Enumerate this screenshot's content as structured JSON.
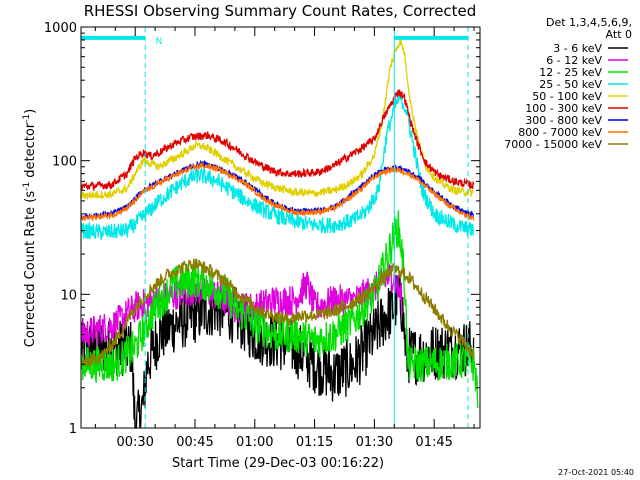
{
  "chart_data": {
    "type": "line",
    "title": "RHESSI Observing Summary Count Rates, Corrected",
    "xlabel": "Start Time (29-Dec-03 00:16:22)",
    "ylabel": "Corrected Count Rate (s",
    "ylabel_sup1": "-1",
    "ylabel_mid": " detector",
    "ylabel_sup2": "-1",
    "ylabel_end": ")",
    "yscale": "log",
    "ylim": [
      1,
      1000
    ],
    "xlim_minutes": [
      16.4,
      116.5
    ],
    "x_ticks": [
      {
        "label": "00:30",
        "minutes": 30
      },
      {
        "label": "00:45",
        "minutes": 45
      },
      {
        "label": "01:00",
        "minutes": 60
      },
      {
        "label": "01:15",
        "minutes": 75
      },
      {
        "label": "01:30",
        "minutes": 90
      },
      {
        "label": "01:45",
        "minutes": 105
      }
    ],
    "y_ticks": [
      {
        "label": "1",
        "value": 1
      },
      {
        "label": "10",
        "value": 10
      },
      {
        "label": "100",
        "value": 100
      },
      {
        "label": "1000",
        "value": 1000
      }
    ],
    "legend_header": [
      "Det 1,3,4,5,6,9,",
      "Att 0"
    ],
    "annotations": {
      "night_label": "N",
      "timestamp": "27-Oct-2021 05:40"
    },
    "markers": {
      "night_bar_minutes": [
        16.4,
        32.5
      ],
      "saa_bar_minutes": [
        95,
        113.5
      ],
      "dashed_lines_minutes": [
        32.5,
        113.5
      ],
      "solid_line_minutes": 95,
      "marker_bar_value": 830
    },
    "series": [
      {
        "name": "3 - 6 keV",
        "color": "#000000",
        "points": [
          [
            16.5,
            4
          ],
          [
            29,
            4
          ],
          [
            30,
            1
          ],
          [
            32,
            1.5
          ],
          [
            33,
            3
          ],
          [
            36,
            5
          ],
          [
            40,
            6
          ],
          [
            45,
            7
          ],
          [
            50,
            8
          ],
          [
            55,
            7
          ],
          [
            60,
            5
          ],
          [
            65,
            4.5
          ],
          [
            70,
            4
          ],
          [
            75,
            3
          ],
          [
            80,
            2.5
          ],
          [
            85,
            3
          ],
          [
            90,
            5
          ],
          [
            93,
            7
          ],
          [
            95,
            8
          ],
          [
            96,
            10
          ],
          [
            97,
            8
          ],
          [
            98,
            3.5
          ],
          [
            100,
            3.5
          ],
          [
            108,
            3.8
          ],
          [
            115,
            4
          ]
        ]
      },
      {
        "name": "6 - 12 keV",
        "color": "#e000e0",
        "points": [
          [
            16.5,
            5
          ],
          [
            25,
            6
          ],
          [
            30,
            8
          ],
          [
            35,
            9
          ],
          [
            40,
            10
          ],
          [
            45,
            11
          ],
          [
            50,
            10
          ],
          [
            55,
            8
          ],
          [
            60,
            8
          ],
          [
            65,
            9
          ],
          [
            70,
            9
          ],
          [
            73,
            12
          ],
          [
            75,
            8
          ],
          [
            80,
            9
          ],
          [
            85,
            9
          ],
          [
            90,
            11
          ],
          [
            93,
            13
          ],
          [
            94.5,
            14
          ],
          [
            95.5,
            12
          ],
          [
            97,
            9
          ]
        ]
      },
      {
        "name": "12 - 25 keV",
        "color": "#00e000",
        "points": [
          [
            16.5,
            3
          ],
          [
            25,
            3
          ],
          [
            30,
            4
          ],
          [
            35,
            8
          ],
          [
            40,
            12
          ],
          [
            45,
            13
          ],
          [
            48,
            12
          ],
          [
            50,
            11
          ],
          [
            53,
            10
          ],
          [
            55,
            8
          ],
          [
            60,
            6
          ],
          [
            65,
            5
          ],
          [
            70,
            5
          ],
          [
            75,
            4.5
          ],
          [
            80,
            5
          ],
          [
            85,
            6.5
          ],
          [
            90,
            10
          ],
          [
            93,
            18
          ],
          [
            95,
            28
          ],
          [
            96,
            32
          ],
          [
            97,
            20
          ],
          [
            97.8,
            10
          ],
          [
            98.3,
            3
          ],
          [
            102,
            3
          ],
          [
            107,
            3.1
          ],
          [
            113,
            3.2
          ],
          [
            115,
            3
          ],
          [
            116,
            1.8
          ]
        ]
      },
      {
        "name": "25 - 50 keV",
        "color": "#00e8e8",
        "points": [
          [
            16.5,
            30
          ],
          [
            22,
            29
          ],
          [
            28,
            30
          ],
          [
            32,
            38
          ],
          [
            36,
            50
          ],
          [
            40,
            62
          ],
          [
            43,
            72
          ],
          [
            46,
            78
          ],
          [
            50,
            72
          ],
          [
            54,
            60
          ],
          [
            58,
            50
          ],
          [
            62,
            43
          ],
          [
            66,
            38
          ],
          [
            70,
            35
          ],
          [
            75,
            33
          ],
          [
            80,
            33
          ],
          [
            85,
            36
          ],
          [
            88,
            42
          ],
          [
            91,
            60
          ],
          [
            93,
            150
          ],
          [
            95,
            250
          ],
          [
            96.5,
            300
          ],
          [
            98,
            240
          ],
          [
            100,
            120
          ],
          [
            102,
            60
          ],
          [
            105,
            40
          ],
          [
            110,
            33
          ],
          [
            115,
            30
          ]
        ]
      },
      {
        "name": "50 - 100 keV",
        "color": "#e0d000",
        "points": [
          [
            16.5,
            55
          ],
          [
            24,
            56
          ],
          [
            28,
            62
          ],
          [
            30,
            80
          ],
          [
            32,
            100
          ],
          [
            34,
            95
          ],
          [
            36,
            90
          ],
          [
            40,
            105
          ],
          [
            43,
            118
          ],
          [
            45,
            130
          ],
          [
            47,
            128
          ],
          [
            50,
            115
          ],
          [
            54,
            95
          ],
          [
            58,
            80
          ],
          [
            62,
            68
          ],
          [
            66,
            62
          ],
          [
            70,
            58
          ],
          [
            75,
            57
          ],
          [
            80,
            60
          ],
          [
            84,
            68
          ],
          [
            87,
            80
          ],
          [
            90,
            110
          ],
          [
            92,
            200
          ],
          [
            94,
            500
          ],
          [
            95.5,
            700
          ],
          [
            96.5,
            780
          ],
          [
            97.5,
            650
          ],
          [
            99,
            280
          ],
          [
            101,
            140
          ],
          [
            103,
            90
          ],
          [
            106,
            70
          ],
          [
            110,
            60
          ],
          [
            115,
            57
          ]
        ]
      },
      {
        "name": "100 - 300 keV",
        "color": "#e00000",
        "points": [
          [
            16.5,
            64
          ],
          [
            24,
            66
          ],
          [
            28,
            80
          ],
          [
            30,
            105
          ],
          [
            32,
            115
          ],
          [
            34,
            108
          ],
          [
            36,
            115
          ],
          [
            40,
            135
          ],
          [
            44,
            150
          ],
          [
            48,
            155
          ],
          [
            52,
            140
          ],
          [
            56,
            118
          ],
          [
            60,
            98
          ],
          [
            64,
            85
          ],
          [
            68,
            80
          ],
          [
            72,
            80
          ],
          [
            76,
            82
          ],
          [
            80,
            92
          ],
          [
            84,
            110
          ],
          [
            87,
            125
          ],
          [
            90,
            145
          ],
          [
            92,
            200
          ],
          [
            94,
            260
          ],
          [
            96,
            330
          ],
          [
            97.5,
            300
          ],
          [
            99,
            200
          ],
          [
            101,
            130
          ],
          [
            103,
            95
          ],
          [
            106,
            78
          ],
          [
            110,
            70
          ],
          [
            115,
            65
          ]
        ]
      },
      {
        "name": "300 - 800 keV",
        "color": "#0000e0",
        "points": [
          [
            16.5,
            38
          ],
          [
            24,
            40
          ],
          [
            28,
            45
          ],
          [
            32,
            60
          ],
          [
            36,
            70
          ],
          [
            40,
            80
          ],
          [
            44,
            90
          ],
          [
            47,
            95
          ],
          [
            50,
            90
          ],
          [
            54,
            80
          ],
          [
            58,
            68
          ],
          [
            62,
            55
          ],
          [
            66,
            46
          ],
          [
            70,
            42
          ],
          [
            75,
            42
          ],
          [
            80,
            45
          ],
          [
            84,
            55
          ],
          [
            87,
            65
          ],
          [
            90,
            78
          ],
          [
            92,
            85
          ],
          [
            95,
            88
          ],
          [
            98,
            85
          ],
          [
            101,
            75
          ],
          [
            104,
            62
          ],
          [
            108,
            50
          ],
          [
            112,
            42
          ],
          [
            115,
            39
          ]
        ]
      },
      {
        "name": "800 - 7000 keV",
        "color": "#ff7000",
        "points": [
          [
            16.5,
            37
          ],
          [
            24,
            39
          ],
          [
            28,
            44
          ],
          [
            32,
            58
          ],
          [
            36,
            68
          ],
          [
            40,
            78
          ],
          [
            44,
            88
          ],
          [
            47,
            92
          ],
          [
            50,
            88
          ],
          [
            54,
            78
          ],
          [
            58,
            66
          ],
          [
            62,
            53
          ],
          [
            66,
            45
          ],
          [
            70,
            41
          ],
          [
            75,
            41
          ],
          [
            80,
            44
          ],
          [
            84,
            53
          ],
          [
            87,
            63
          ],
          [
            90,
            75
          ],
          [
            92,
            82
          ],
          [
            95,
            86
          ],
          [
            98,
            82
          ],
          [
            101,
            72
          ],
          [
            104,
            60
          ],
          [
            108,
            48
          ],
          [
            112,
            40
          ],
          [
            115,
            37
          ]
        ]
      },
      {
        "name": "7000 - 15000 keV",
        "color": "#8b7d00",
        "points": [
          [
            16.5,
            3
          ],
          [
            22,
            3.5
          ],
          [
            26,
            5
          ],
          [
            30,
            8
          ],
          [
            34,
            11
          ],
          [
            38,
            14
          ],
          [
            42,
            16
          ],
          [
            45,
            17
          ],
          [
            48,
            15.5
          ],
          [
            52,
            13
          ],
          [
            56,
            10
          ],
          [
            60,
            8
          ],
          [
            64,
            7
          ],
          [
            68,
            6.5
          ],
          [
            72,
            7
          ],
          [
            76,
            7
          ],
          [
            80,
            7.5
          ],
          [
            84,
            8.5
          ],
          [
            88,
            10
          ],
          [
            92,
            13
          ],
          [
            95,
            15.5
          ],
          [
            98,
            14
          ],
          [
            101,
            11
          ],
          [
            104,
            8.5
          ],
          [
            108,
            6
          ],
          [
            112,
            4.5
          ],
          [
            115,
            3.5
          ]
        ]
      }
    ]
  }
}
